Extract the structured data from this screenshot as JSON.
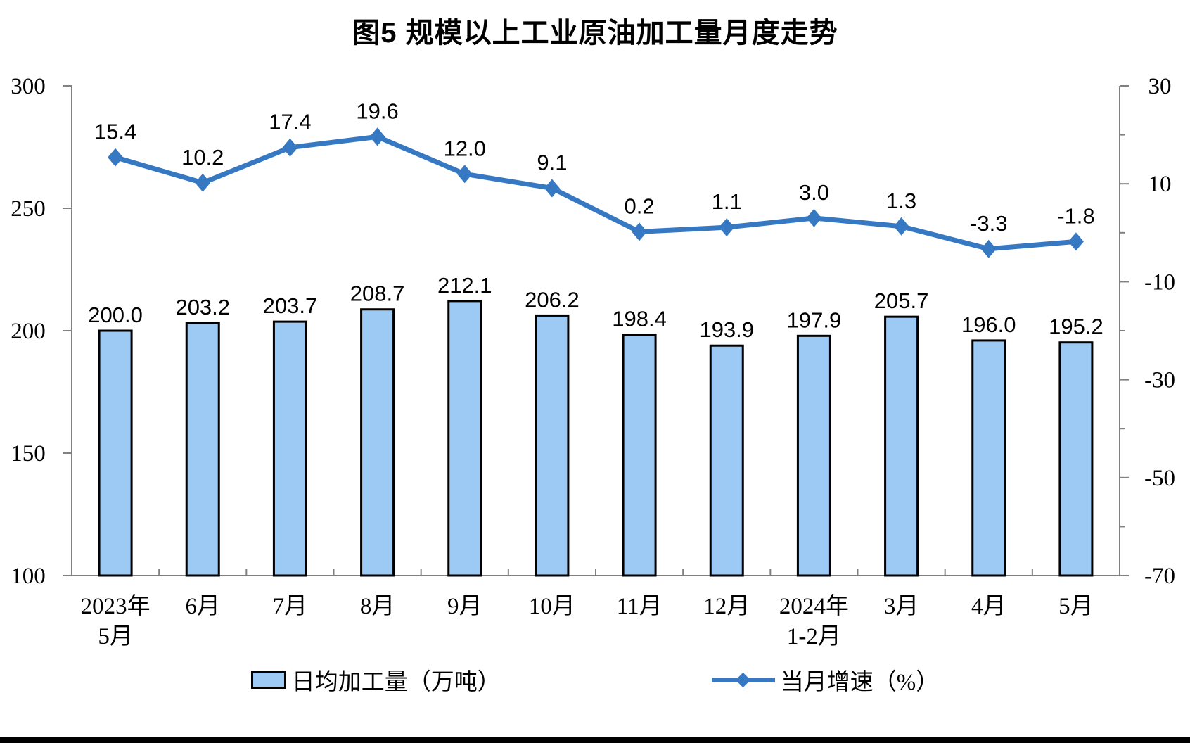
{
  "title": "图5  规模以上工业原油加工量月度走势",
  "chart_data": {
    "type": "bar+line combo, dual y-axis",
    "title": "图5  规模以上工业原油加工量月度走势",
    "categories": [
      "2023年\n5月",
      "6月",
      "7月",
      "8月",
      "9月",
      "10月",
      "11月",
      "12月",
      "2024年\n1-2月",
      "3月",
      "4月",
      "5月"
    ],
    "series": [
      {
        "name": "日均加工量（万吨）",
        "type": "bar",
        "axis": "left",
        "values": [
          200.0,
          203.2,
          203.7,
          208.7,
          212.1,
          206.2,
          198.4,
          193.9,
          197.9,
          205.7,
          196.0,
          195.2
        ]
      },
      {
        "name": "当月增速（%）",
        "type": "line",
        "axis": "right",
        "values": [
          15.4,
          10.2,
          17.4,
          19.6,
          12.0,
          9.1,
          0.2,
          1.1,
          3.0,
          1.3,
          -3.3,
          -1.8
        ]
      }
    ],
    "left_axis": {
      "min": 100,
      "max": 300,
      "tick_values": [
        300,
        250,
        200,
        150,
        100
      ],
      "tick_labels": [
        "300",
        "250",
        "200",
        "150",
        "100"
      ]
    },
    "right_axis": {
      "min": -70,
      "max": 30,
      "major_tick_values": [
        30,
        10,
        -10,
        -30,
        -50,
        -70
      ],
      "major_tick_labels": [
        "30",
        "10",
        "-10",
        "-30",
        "-50",
        "-70"
      ],
      "minor_tick_values": [
        20,
        0,
        -20,
        -40,
        -60
      ]
    },
    "grid": false,
    "legend_position": "bottom",
    "colors": {
      "bar_fill": "#9DC9F5",
      "bar_stroke": "#000000",
      "line": "#3679C2",
      "axis": "#808080",
      "label": "#000000"
    }
  }
}
